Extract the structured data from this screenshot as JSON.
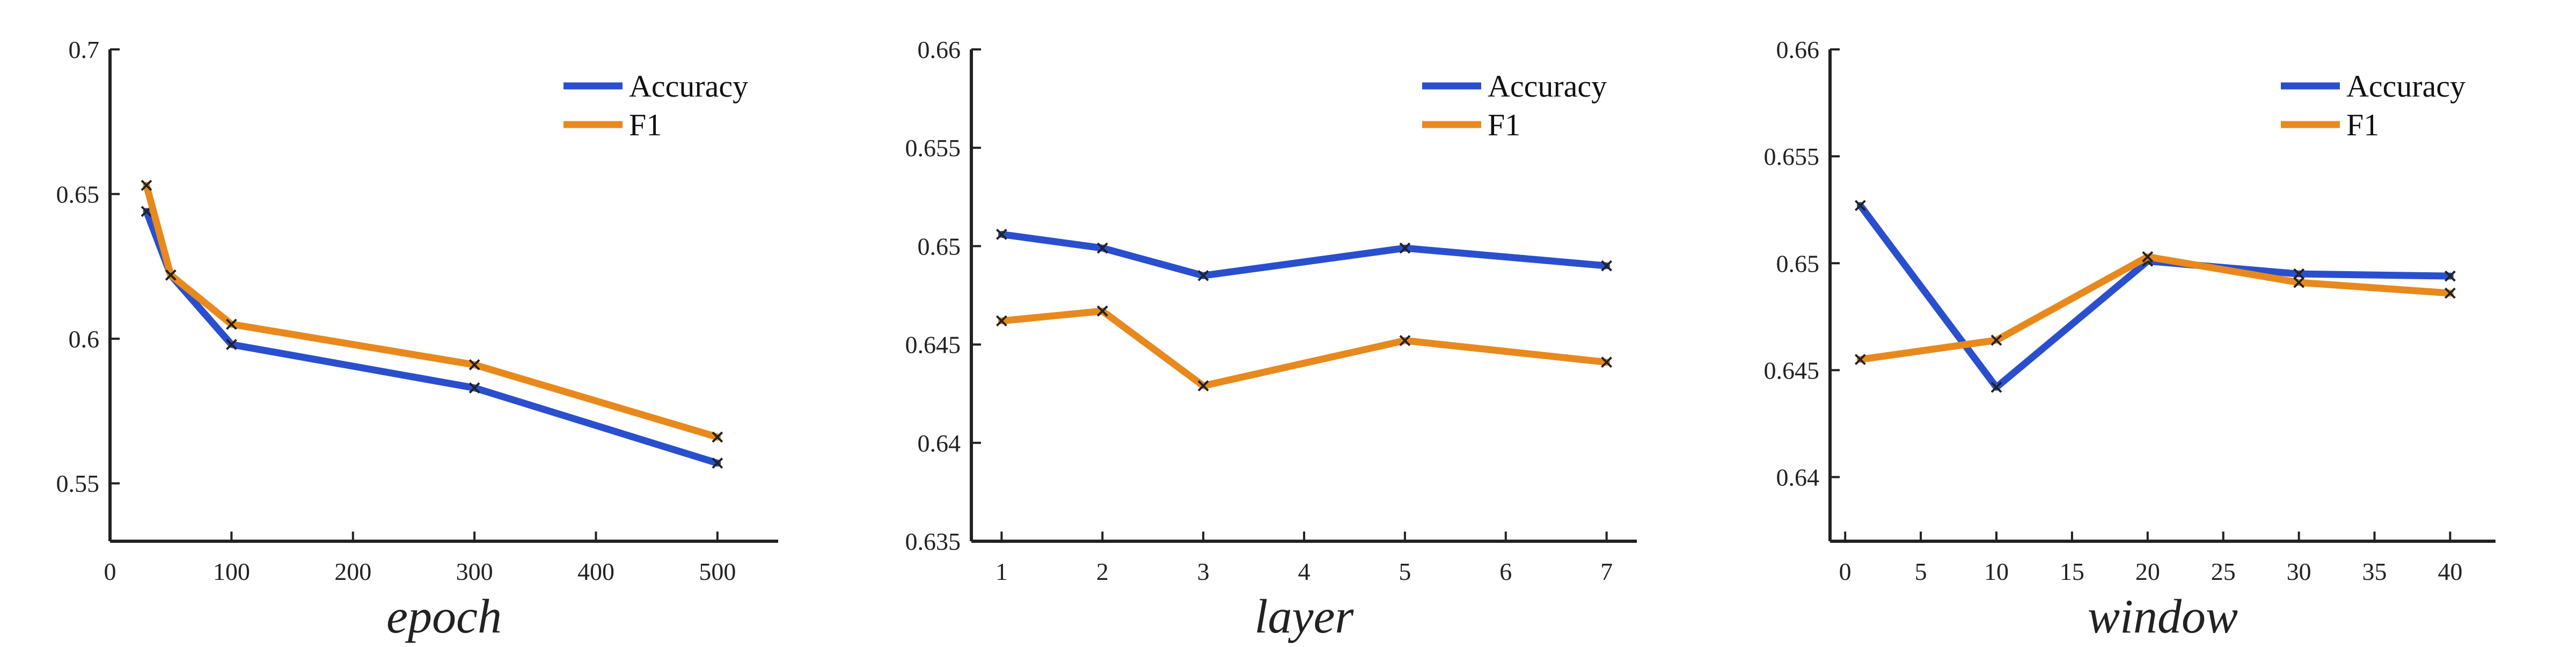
{
  "chart_data": [
    {
      "type": "line",
      "xlabel": "epoch",
      "ylabel": "",
      "xlim": [
        0,
        550
      ],
      "ylim": [
        0.53,
        0.7
      ],
      "xticks": [
        0,
        100,
        200,
        300,
        400,
        500
      ],
      "yticks": [
        0.55,
        0.6,
        0.65,
        0.7
      ],
      "ytick_labels": [
        "0.55",
        "0.6",
        "0.65",
        "0.7"
      ],
      "x": [
        30,
        50,
        100,
        300,
        500
      ],
      "legend_position": "top-right",
      "grid": false,
      "series": [
        {
          "name": "Accuracy",
          "color": "#2a4fce",
          "values": [
            0.644,
            0.622,
            0.598,
            0.583,
            0.557
          ]
        },
        {
          "name": "F1",
          "color": "#e8891d",
          "values": [
            0.653,
            0.622,
            0.605,
            0.591,
            0.566
          ]
        }
      ]
    },
    {
      "type": "line",
      "xlabel": "layer",
      "ylabel": "",
      "xlim": [
        0.7,
        7.3
      ],
      "ylim": [
        0.635,
        0.66
      ],
      "xticks": [
        1,
        2,
        3,
        4,
        5,
        6,
        7
      ],
      "yticks": [
        0.635,
        0.64,
        0.645,
        0.65,
        0.655,
        0.66
      ],
      "ytick_labels": [
        "0.635",
        "0.64",
        "0.645",
        "0.65",
        "0.655",
        "0.66"
      ],
      "x": [
        1,
        2,
        3,
        5,
        7
      ],
      "legend_position": "top-right",
      "grid": false,
      "series": [
        {
          "name": "Accuracy",
          "color": "#2a4fce",
          "values": [
            0.6506,
            0.6499,
            0.6485,
            0.6499,
            0.649
          ]
        },
        {
          "name": "F1",
          "color": "#e8891d",
          "values": [
            0.6462,
            0.6467,
            0.6429,
            0.6452,
            0.6441
          ]
        }
      ]
    },
    {
      "type": "line",
      "xlabel": "window",
      "ylabel": "",
      "xlim": [
        -1,
        43
      ],
      "ylim": [
        0.637,
        0.66
      ],
      "xticks": [
        0,
        5,
        10,
        15,
        20,
        25,
        30,
        35,
        40
      ],
      "yticks": [
        0.64,
        0.645,
        0.65,
        0.655,
        0.66
      ],
      "ytick_labels": [
        "0.64",
        "0.645",
        "0.65",
        "0.655",
        "0.66"
      ],
      "x": [
        1,
        10,
        20,
        30,
        40
      ],
      "legend_position": "top-right",
      "grid": false,
      "series": [
        {
          "name": "Accuracy",
          "color": "#2a4fce",
          "values": [
            0.6527,
            0.6442,
            0.6501,
            0.6495,
            0.6494
          ]
        },
        {
          "name": "F1",
          "color": "#e8891d",
          "values": [
            0.6455,
            0.6464,
            0.6503,
            0.6491,
            0.6486
          ]
        }
      ]
    }
  ]
}
